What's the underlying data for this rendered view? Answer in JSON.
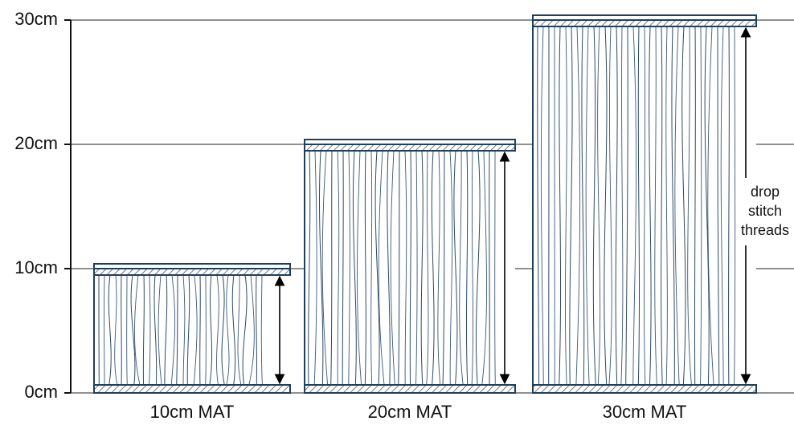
{
  "axis": {
    "ticks": [
      {
        "value": 0,
        "label": "0cm"
      },
      {
        "value": 10,
        "label": "10cm"
      },
      {
        "value": 20,
        "label": "20cm"
      },
      {
        "value": 30,
        "label": "30cm"
      }
    ]
  },
  "mats": [
    {
      "label": "10cm MAT",
      "height": 10
    },
    {
      "label": "20cm MAT",
      "height": 20
    },
    {
      "label": "30cm MAT",
      "height": 30
    }
  ],
  "annotation": {
    "lines": [
      "drop",
      "stitch",
      "threads"
    ]
  }
}
